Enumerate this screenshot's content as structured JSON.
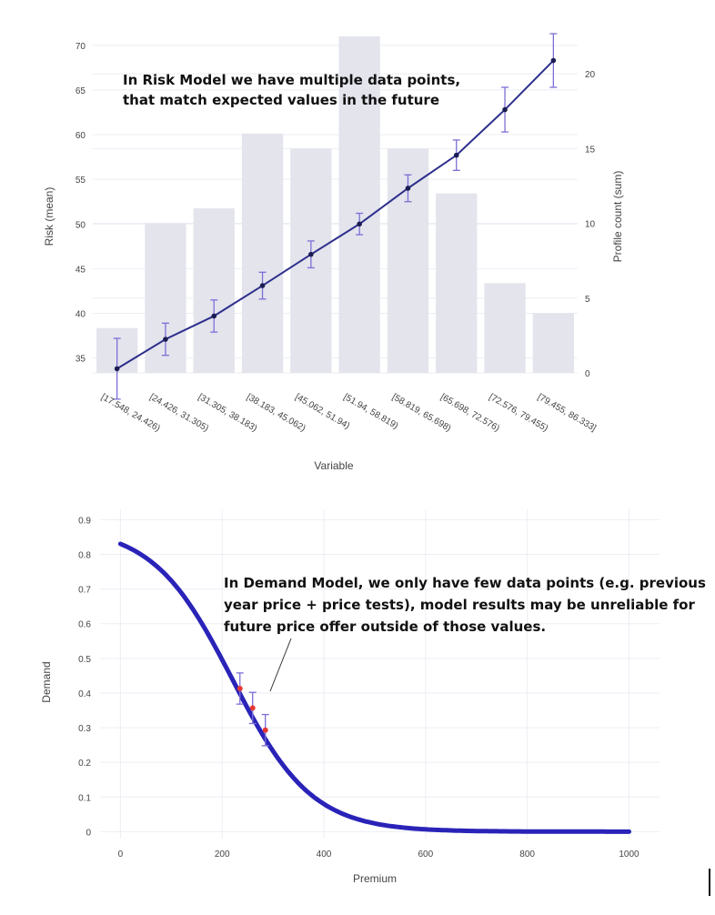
{
  "chart_data": [
    {
      "type": "bar+line",
      "xlabel": "Variable",
      "ylabel": "Risk (mean)",
      "y2label": "Profile count (sum)",
      "ylim": [
        31.5,
        71
      ],
      "y2lim": [
        0,
        22.5
      ],
      "yticks": [
        35,
        40,
        45,
        50,
        55,
        60,
        65,
        70
      ],
      "y2ticks": [
        0,
        5,
        10,
        15,
        20
      ],
      "grid": true,
      "categories": [
        "[17.548, 24.426)",
        "[24.426, 31.305)",
        "[31.305, 38.183)",
        "[38.183, 45.062)",
        "[45.062, 51.94)",
        "[51.94, 58.819)",
        "[58.819, 65.698)",
        "[65.698, 72.576)",
        "[72.576, 79.455)",
        "[79.455, 86.333]"
      ],
      "series": [
        {
          "type": "bar",
          "axis": "y2",
          "values": [
            3,
            10,
            11,
            16,
            15,
            22.5,
            15,
            12,
            6,
            4
          ]
        },
        {
          "type": "line",
          "axis": "y",
          "values": [
            33.8,
            37.1,
            39.7,
            43.1,
            46.6,
            50.0,
            54.0,
            57.7,
            62.8,
            68.3
          ],
          "error": [
            3.4,
            1.8,
            1.8,
            1.5,
            1.5,
            1.2,
            1.5,
            1.7,
            2.5,
            3.0
          ]
        }
      ],
      "annotation": [
        "In Risk Model we have multiple data points,",
        "that match expected values in the future"
      ]
    },
    {
      "type": "line",
      "xlabel": "Premium",
      "ylabel": "Demand",
      "xlim": [
        -40,
        1060
      ],
      "ylim": [
        -0.02,
        0.93
      ],
      "xticks": [
        0,
        200,
        400,
        600,
        800,
        1000
      ],
      "yticks": [
        0,
        0.1,
        0.2,
        0.3,
        0.4,
        0.5,
        0.6,
        0.7,
        0.8,
        0.9
      ],
      "ytick_labels": [
        "0",
        "0.1",
        "0.2",
        "0.3",
        "0.4",
        "0.5",
        "0.6",
        "0.7",
        "0.8",
        "0.9"
      ],
      "grid": true,
      "curve": {
        "p0": 0.88,
        "midpoint": 220,
        "steepness": 0.0128,
        "x_range": [
          0,
          1000
        ]
      },
      "points": [
        {
          "x": 235,
          "y": 0.413,
          "error": 0.045
        },
        {
          "x": 260,
          "y": 0.357,
          "error": 0.045
        },
        {
          "x": 285,
          "y": 0.293,
          "error": 0.045
        }
      ],
      "annotation": [
        "In Demand Model, we only have few data points (e.g. previous",
        "year price + price tests), model results may be unreliable for",
        "future price offer outside of those values."
      ]
    }
  ],
  "colors": {
    "bar": "#e3e4ec",
    "risk_line": "#2e2e8c",
    "risk_marker": "#1c1c54",
    "error_bar": "#7b6fd6",
    "demand_curve": "#2a23b8",
    "demand_point": "#e53935",
    "grid": "#eceef4",
    "tick_text": "#444444"
  }
}
